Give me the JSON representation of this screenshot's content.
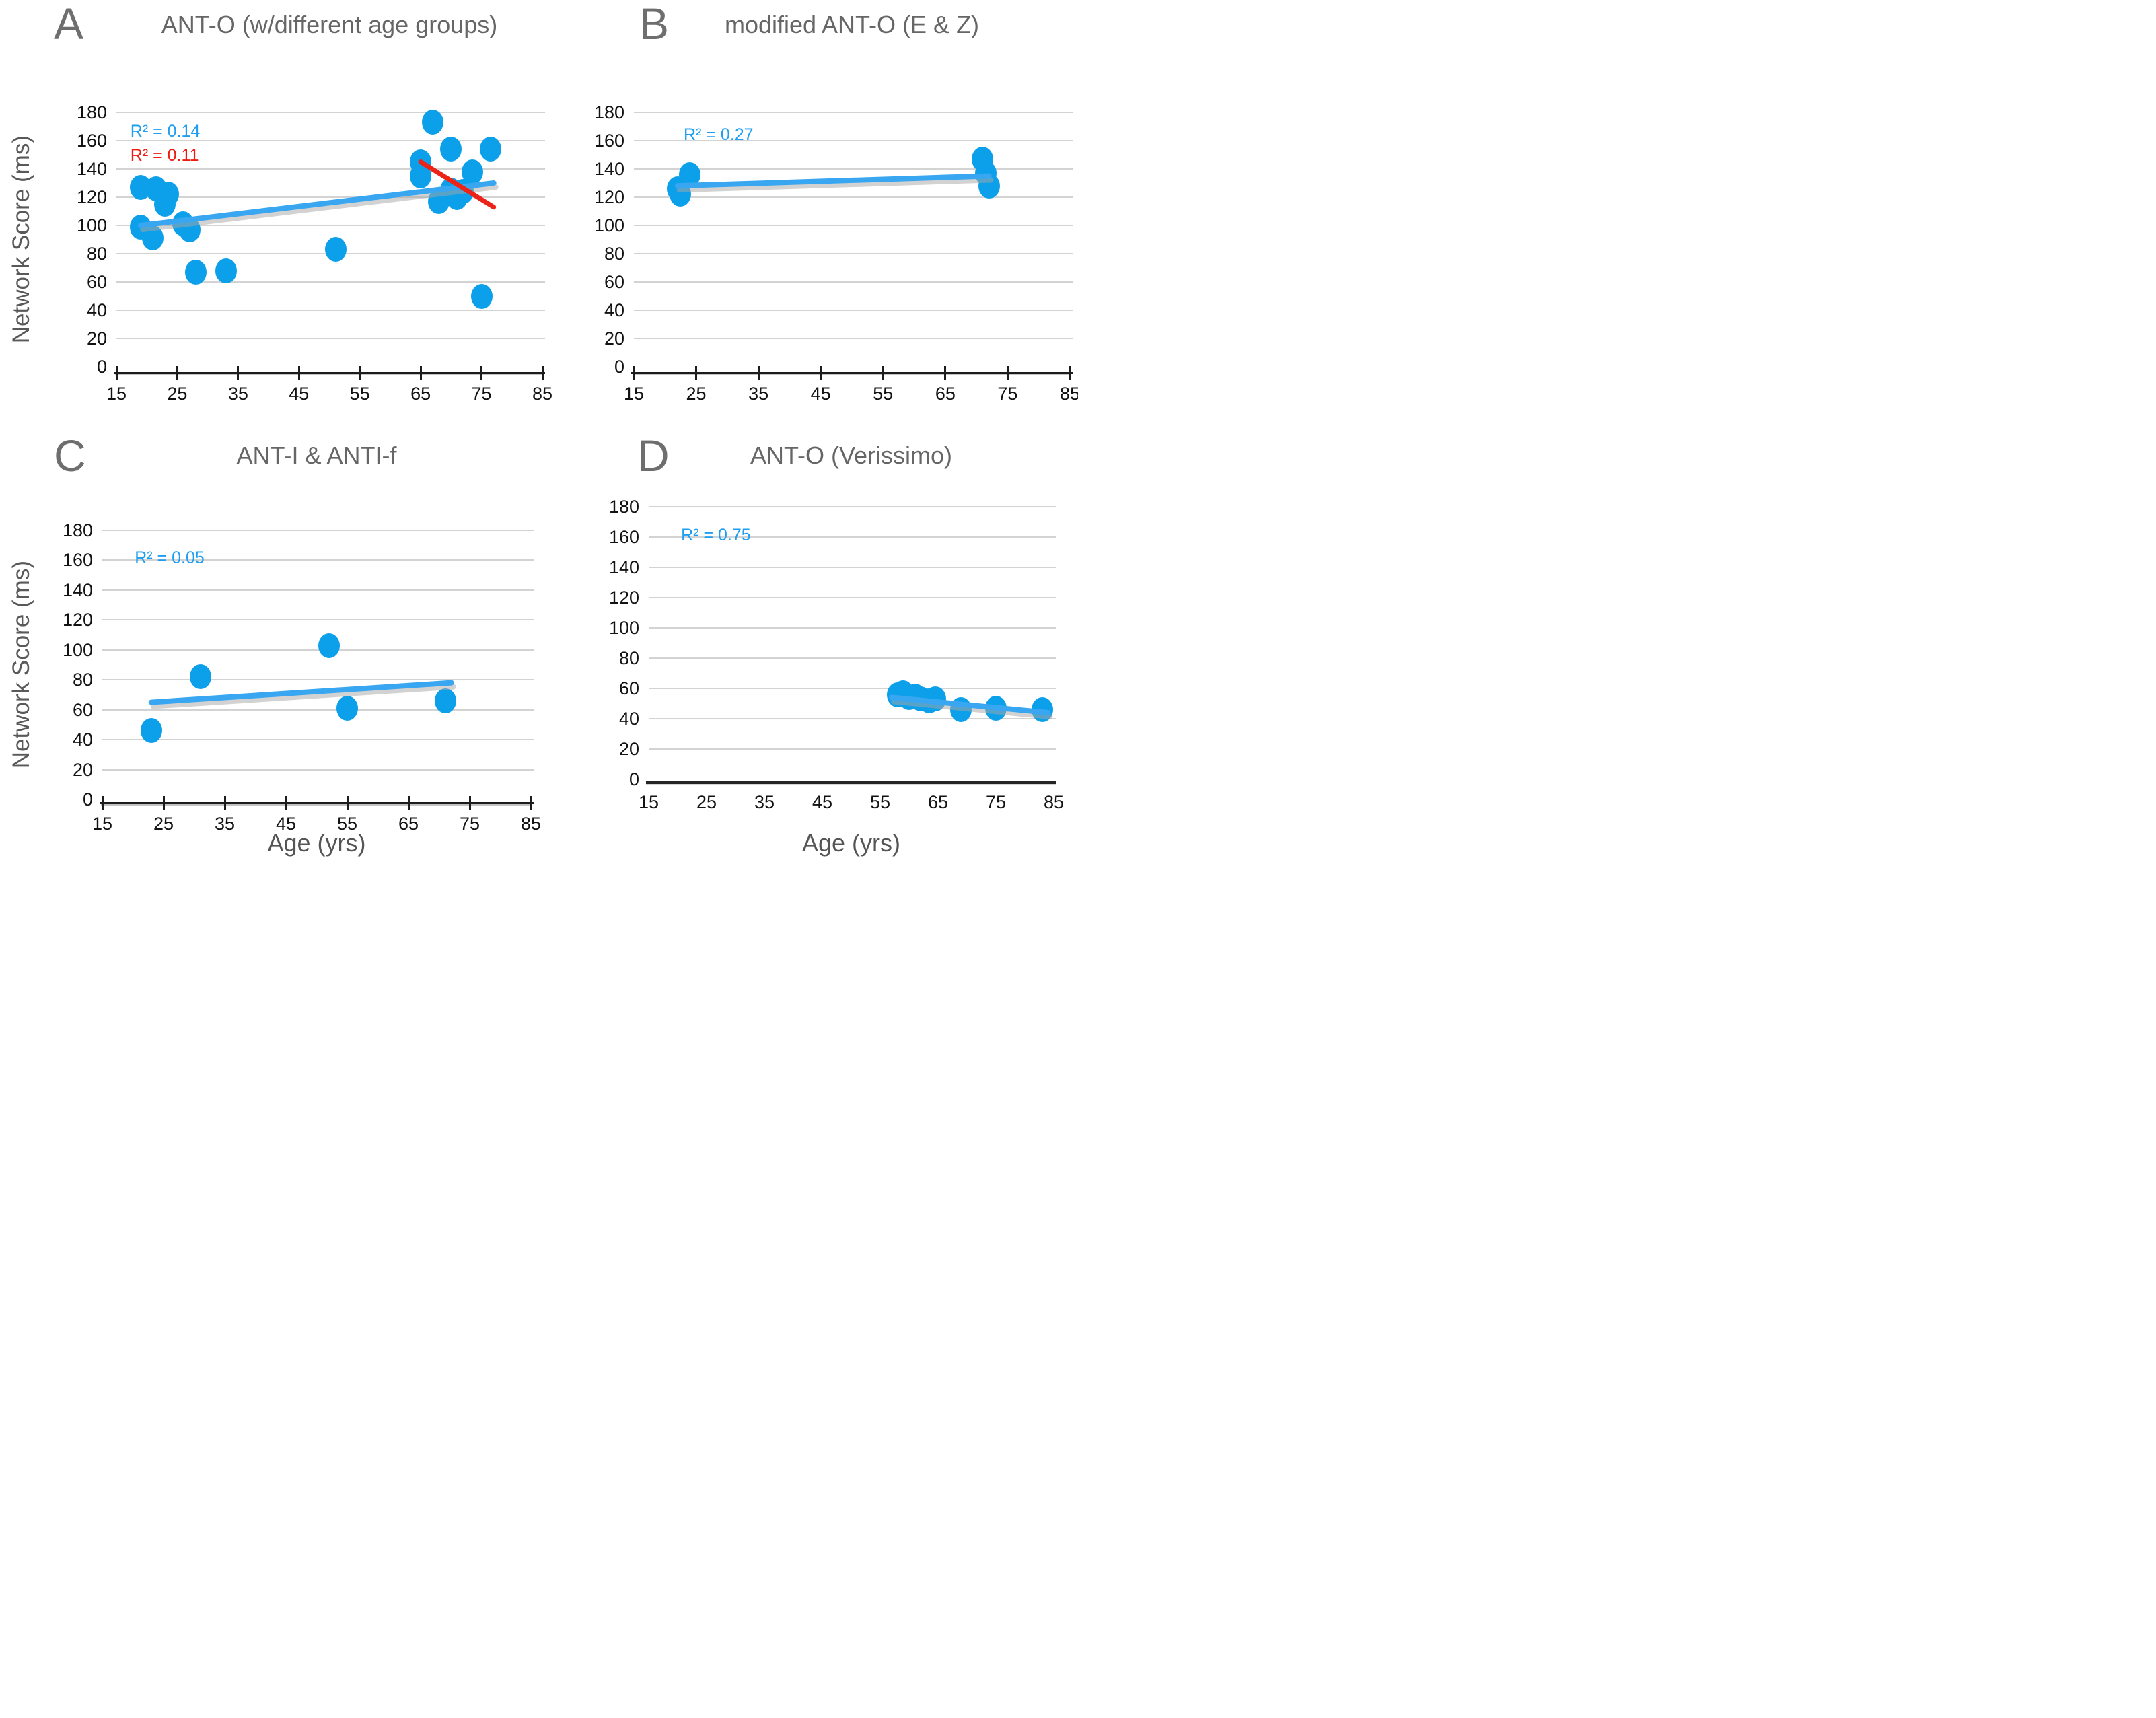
{
  "figure": {
    "y_axis_title": "Network Score (ms)",
    "x_axis_title": "Age (yrs)"
  },
  "style": {
    "point_color": "#0da0ea",
    "trend_blue": "#38a6f1",
    "trend_red": "#ee2318",
    "r2_blue": "#1e9ef0",
    "r2_red": "#ef1a10",
    "gridline_color": "#d3d3d3",
    "title_color": "#666666",
    "letter_color": "#6e6e6e"
  },
  "chart_data": [
    {
      "type": "scatter",
      "letter": "A",
      "title": "ANT-O (w/different age groups)",
      "ylabel": "Network Score (ms)",
      "xlabel": "",
      "xlim": [
        15,
        85
      ],
      "ylim": [
        0,
        180
      ],
      "xticks": [
        15,
        25,
        35,
        45,
        55,
        65,
        75,
        85
      ],
      "yticks": [
        180,
        160,
        140,
        120,
        100,
        80,
        60,
        40,
        20,
        0
      ],
      "axis_style": "ticks",
      "axis_offset": 8,
      "point_color": "#0da0ea",
      "annotations": [
        {
          "text": "R² = 0.14",
          "color": "#1e9ef0",
          "x": 17.3,
          "y": 166
        },
        {
          "text": "R² = 0.11",
          "color": "#ef1a10",
          "x": 17.3,
          "y": 149
        }
      ],
      "points": [
        [
          19,
          127
        ],
        [
          21.5,
          126
        ],
        [
          23.5,
          122
        ],
        [
          23,
          115
        ],
        [
          19,
          99
        ],
        [
          21,
          91
        ],
        [
          26,
          101
        ],
        [
          27,
          97
        ],
        [
          28,
          67
        ],
        [
          33,
          68
        ],
        [
          51,
          83
        ],
        [
          65,
          145
        ],
        [
          65,
          135
        ],
        [
          67,
          173
        ],
        [
          70,
          154
        ],
        [
          76.5,
          154
        ],
        [
          73.5,
          138
        ],
        [
          68,
          117
        ],
        [
          70,
          125
        ],
        [
          71,
          120
        ],
        [
          72,
          124
        ],
        [
          75,
          50
        ]
      ],
      "lines": [
        {
          "name": "blue-trend",
          "color": "#38a6f1",
          "x1": 19,
          "y1": 100,
          "x2": 77,
          "y2": 130,
          "width": 8,
          "shadow": true
        },
        {
          "name": "red-trend",
          "color": "#ee2318",
          "x1": 65,
          "y1": 145,
          "x2": 77,
          "y2": 113,
          "width": 7,
          "shadow": false
        }
      ]
    },
    {
      "type": "scatter",
      "letter": "B",
      "title": "modified ANT-O (E & Z)",
      "ylabel": "",
      "xlabel": "",
      "xlim": [
        15,
        85
      ],
      "ylim": [
        0,
        180
      ],
      "xticks": [
        15,
        25,
        35,
        45,
        55,
        65,
        75,
        85
      ],
      "yticks": [
        180,
        160,
        140,
        120,
        100,
        80,
        60,
        40,
        20,
        0
      ],
      "axis_style": "ticks",
      "axis_offset": 8,
      "point_color": "#0da0ea",
      "annotations": [
        {
          "text": "R² = 0.27",
          "color": "#1e9ef0",
          "x": 23,
          "y": 164
        }
      ],
      "points": [
        [
          24,
          136
        ],
        [
          22,
          126
        ],
        [
          22.5,
          122
        ],
        [
          71,
          147
        ],
        [
          71.5,
          137
        ],
        [
          72,
          128
        ]
      ],
      "lines": [
        {
          "name": "blue-trend",
          "color": "#38a6f1",
          "x1": 22,
          "y1": 128,
          "x2": 72,
          "y2": 135,
          "width": 8,
          "shadow": true
        }
      ]
    },
    {
      "type": "scatter",
      "letter": "C",
      "title": "ANT-I & ANTI-f",
      "ylabel": "Network Score (ms)",
      "xlabel": "Age (yrs)",
      "xlim": [
        15,
        85
      ],
      "ylim": [
        0,
        180
      ],
      "xticks": [
        15,
        25,
        35,
        45,
        55,
        65,
        75,
        85
      ],
      "yticks": [
        180,
        160,
        140,
        120,
        100,
        80,
        60,
        40,
        20,
        0
      ],
      "axis_style": "ticks",
      "axis_offset": 4,
      "point_color": "#0da0ea",
      "annotations": [
        {
          "text": "R² = 0.05",
          "color": "#1e9ef0",
          "x": 20.3,
          "y": 161
        }
      ],
      "points": [
        [
          23,
          46
        ],
        [
          31,
          82
        ],
        [
          52,
          103
        ],
        [
          55,
          61
        ],
        [
          71,
          66
        ]
      ],
      "lines": [
        {
          "name": "blue-trend",
          "color": "#38a6f1",
          "x1": 23,
          "y1": 65,
          "x2": 72,
          "y2": 78,
          "width": 8,
          "shadow": true
        }
      ]
    },
    {
      "type": "scatter",
      "letter": "D",
      "title": "ANT-O (Verissimo)",
      "ylabel": "",
      "xlabel": "Age (yrs)",
      "xlim": [
        15,
        85
      ],
      "ylim": [
        0,
        180
      ],
      "xticks": [
        15,
        25,
        35,
        45,
        55,
        65,
        75,
        85
      ],
      "yticks": [
        180,
        160,
        140,
        120,
        100,
        80,
        60,
        40,
        20,
        0
      ],
      "axis_style": "plain",
      "axis_offset": 2,
      "point_color": "#0da0ea",
      "annotations": [
        {
          "text": "R² = 0.75",
          "color": "#1e9ef0",
          "x": 20.6,
          "y": 161
        }
      ],
      "points": [
        [
          58,
          56
        ],
        [
          59,
          57
        ],
        [
          60,
          54
        ],
        [
          61,
          55
        ],
        [
          62,
          53
        ],
        [
          63.5,
          52
        ],
        [
          64.5,
          53
        ],
        [
          69,
          46
        ],
        [
          75,
          47
        ],
        [
          83,
          46
        ]
      ],
      "lines": [
        {
          "name": "blue-trend",
          "color": "#38a6f1",
          "x1": 57,
          "y1": 54,
          "x2": 84,
          "y2": 44,
          "width": 8,
          "shadow": true
        }
      ]
    }
  ]
}
